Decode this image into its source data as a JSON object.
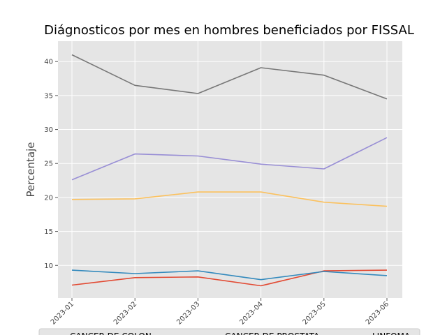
{
  "chart_data": {
    "type": "line",
    "title": "Diágnosticos por mes en hombres beneficiados por FISSAL",
    "xlabel": "",
    "ylabel": "Percentaje",
    "x": [
      "2023-01",
      "2023-02",
      "2023-03",
      "2023-04",
      "2023-05",
      "2023-06"
    ],
    "yticks": [
      "10",
      "15",
      "20",
      "25",
      "30",
      "35",
      "40"
    ],
    "ylim": [
      5.2,
      43.0
    ],
    "grid": true,
    "legend_position": "bottom",
    "series": [
      {
        "name": "CANCER DE COLON",
        "color": "#E24A33",
        "values": [
          7.1,
          8.2,
          8.3,
          7.0,
          9.2,
          9.3
        ]
      },
      {
        "name": "CANCER DE PROSTATA",
        "color": "#348ABD",
        "values": [
          9.3,
          8.8,
          9.2,
          7.9,
          9.1,
          8.5
        ]
      },
      {
        "name": "LINFOMA",
        "color": "#988ED5",
        "values": [
          22.6,
          26.4,
          26.1,
          24.9,
          24.2,
          28.8
        ]
      },
      {
        "name": "",
        "color": "#777777",
        "values": [
          41.0,
          36.5,
          35.3,
          39.1,
          38.0,
          34.5
        ]
      },
      {
        "name": "",
        "color": "#FBC15E",
        "values": [
          19.7,
          19.8,
          20.8,
          20.8,
          19.3,
          18.7
        ]
      }
    ]
  }
}
